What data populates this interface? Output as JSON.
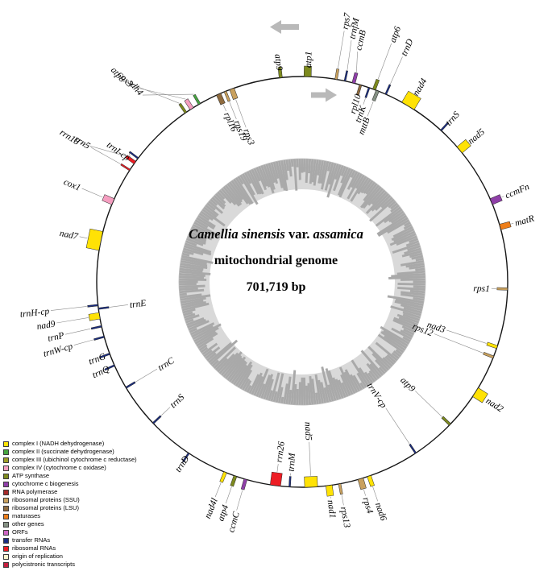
{
  "figure": {
    "title": {
      "species": "Camellia sinensis",
      "var_label": " var. ",
      "variety": "assamica",
      "line2": "mitochondrial genome",
      "line3": "701,719 bp"
    },
    "direction_arrows": {
      "outer_strand": "counterclockwise",
      "inner_strand": "clockwise"
    },
    "colors": {
      "nad": "#ffe205",
      "sdh": "#46a540",
      "cob": "#9d9d26",
      "cox": "#f59ec0",
      "atp": "#7d8a1e",
      "ccm": "#8f3fa8",
      "rpo": "#a52a2a",
      "ssu": "#c9a15e",
      "lsu": "#8f6b3e",
      "mat": "#ee7e19",
      "other": "#859183",
      "orf": "#cd66c4",
      "trna": "#1a2d83",
      "rrna": "#ed1c24",
      "ori": "#fcf6cf",
      "poly": "#c41f3e",
      "circle": "#151515",
      "gc_ring_light": "#d9d9d9",
      "gc_ring_dark": "#a9a9a9",
      "arrow": "#b9b9b9",
      "leader": "#8a8a8a"
    },
    "genes": [
      {
        "n": "atp1",
        "a": 1.5,
        "s": "out",
        "c": "atp",
        "w": 9,
        "lr": 266
      },
      {
        "n": "rps7",
        "a": 9.5,
        "s": "out",
        "c": "ssu",
        "w": 3,
        "lr": 318
      },
      {
        "n": "trnfM",
        "a": 12,
        "s": "out",
        "c": "trna",
        "w": 2,
        "lr": 308,
        "la": 11.5
      },
      {
        "n": "ccmB",
        "a": 14.5,
        "s": "out",
        "c": "ccm",
        "w": 4,
        "lr": 296,
        "la": 13.5
      },
      {
        "n": "atp6",
        "a": 20.5,
        "s": "out",
        "c": "atp",
        "w": 4,
        "lr": 318
      },
      {
        "n": "trnD",
        "a": 24,
        "s": "out",
        "c": "trna",
        "w": 2,
        "lr": 308
      },
      {
        "n": "rpl10",
        "a": 16.5,
        "s": "in",
        "c": "lsu",
        "w": 3,
        "lr": 243
      },
      {
        "n": "trnK",
        "a": 19,
        "s": "in",
        "c": "trna",
        "w": 2,
        "lr": 231
      },
      {
        "n": "mttB",
        "a": 21.5,
        "s": "in",
        "c": "other",
        "w": 4,
        "lr": 219
      },
      {
        "n": "nad4",
        "a": 31,
        "s": "out",
        "c": "nad",
        "w": 18,
        "h": 16,
        "lr": 271
      },
      {
        "n": "trnS",
        "a": 42.5,
        "s": "out",
        "c": "trna",
        "w": 2,
        "lr": 266
      },
      {
        "n": "nad5",
        "a": 50,
        "s": "out",
        "c": "nad",
        "w": 10,
        "h": 14,
        "lr": 270
      },
      {
        "n": "ccmFn",
        "a": 67,
        "s": "out",
        "c": "ccm",
        "w": 8,
        "lr": 274
      },
      {
        "n": "matR",
        "a": 74.5,
        "s": "out",
        "c": "mat",
        "w": 7,
        "lr": 274
      },
      {
        "n": "rps1",
        "a": 92,
        "s": "in",
        "c": "ssu",
        "w": 3,
        "lr": 233
      },
      {
        "n": "nad3",
        "a": 108.5,
        "s": "in",
        "c": "nad",
        "w": 4,
        "lr": 187
      },
      {
        "n": "rps12",
        "a": 111.5,
        "s": "in",
        "c": "ssu",
        "w": 3,
        "lr": 174
      },
      {
        "n": "nad2",
        "a": 122.5,
        "s": "out",
        "c": "nad",
        "w": 13,
        "h": 14,
        "lr": 272
      },
      {
        "n": "atp9",
        "a": 134,
        "s": "in",
        "c": "atp",
        "w": 3,
        "lr": 193
      },
      {
        "n": "trnV-cp",
        "a": 146.5,
        "s": "in",
        "c": "trna",
        "w": 2,
        "lr": 186
      },
      {
        "n": "nad5",
        "a": 177.5,
        "s": "in",
        "c": "nad",
        "w": 16,
        "h": 13,
        "lr": 197
      },
      {
        "n": "nad6",
        "a": 161,
        "s": "out",
        "c": "nad",
        "w": 5,
        "lr": 290
      },
      {
        "n": "rps4",
        "a": 163.5,
        "s": "out",
        "c": "ssu",
        "w": 7,
        "lr": 279
      },
      {
        "n": "rps13",
        "a": 169.5,
        "s": "out",
        "c": "ssu",
        "w": 3,
        "lr": 284
      },
      {
        "n": "nad1",
        "a": 172.5,
        "s": "out",
        "c": "nad",
        "w": 8,
        "lr": 273
      },
      {
        "n": "trnM",
        "a": 183.5,
        "s": "in",
        "c": "trna",
        "w": 2,
        "lr": 236
      },
      {
        "n": "rrn26",
        "a": 187.5,
        "s": "in",
        "c": "rrna",
        "w": 13,
        "h": 16,
        "lr": 226
      },
      {
        "n": "ccmC",
        "a": 196,
        "s": "out",
        "c": "ccm",
        "w": 4,
        "lr": 297
      },
      {
        "n": "atp4",
        "a": 199,
        "s": "out",
        "c": "atp",
        "w": 4,
        "lr": 293
      },
      {
        "n": "nad4l",
        "a": 202,
        "s": "out",
        "c": "nad",
        "w": 4,
        "lr": 290
      },
      {
        "n": "trnD",
        "a": 213.5,
        "s": "out",
        "c": "trna",
        "w": 2,
        "lr": 260
      },
      {
        "n": "trnS",
        "a": 226.5,
        "s": "in",
        "c": "trna",
        "w": 2,
        "lr": 224
      },
      {
        "n": "trnC",
        "a": 239,
        "s": "in",
        "c": "trna",
        "w": 2,
        "lr": 208
      },
      {
        "n": "trnQ",
        "a": 246,
        "s": "out",
        "c": "trna",
        "w": 2,
        "lr": 263
      },
      {
        "n": "trnG",
        "a": 249.5,
        "s": "out",
        "c": "trna",
        "w": 2,
        "lr": 261
      },
      {
        "n": "trnW-cp",
        "a": 254.5,
        "s": "out",
        "c": "trna",
        "w": 2,
        "lr": 296
      },
      {
        "n": "trnP",
        "a": 257.5,
        "s": "out",
        "c": "trna",
        "w": 2,
        "lr": 303
      },
      {
        "n": "nad9",
        "a": 260.5,
        "s": "out",
        "c": "nad",
        "w": 8,
        "lr": 311
      },
      {
        "n": "trnH-cp",
        "a": 263.5,
        "s": "out",
        "c": "trna",
        "w": 2,
        "lr": 316
      },
      {
        "n": "trnE",
        "a": 262.5,
        "s": "in",
        "c": "trna",
        "w": 2,
        "lr": 216
      },
      {
        "n": "nad7",
        "a": 281.5,
        "s": "out",
        "c": "nad",
        "w": 24,
        "h": 16,
        "lr": 284
      },
      {
        "n": "cox1",
        "a": 293,
        "s": "out",
        "c": "cox",
        "w": 8,
        "lr": 299
      },
      {
        "n": "rrn5",
        "a": 303,
        "s": "out",
        "c": "rrna",
        "w": 2,
        "lr": 313,
        "la": 302.5
      },
      {
        "n": "rrn18",
        "a": 305.5,
        "s": "out",
        "c": "rrna",
        "w": 4,
        "lr": 327,
        "la": 302
      },
      {
        "n": "trnI-cp",
        "a": 307,
        "s": "out",
        "c": "trna",
        "w": 2,
        "lr": 264,
        "la": 305.5
      },
      {
        "n": "atp8",
        "a": 325.5,
        "s": "out",
        "c": "atp",
        "w": 3,
        "lr": 334,
        "la": 318.5
      },
      {
        "n": "cox3",
        "a": 327.5,
        "s": "out",
        "c": "cox",
        "w": 5,
        "lr": 323,
        "la": 319
      },
      {
        "n": "sdh4",
        "a": 330,
        "s": "out",
        "c": "sdh",
        "w": 3,
        "lr": 307,
        "la": 319.5
      },
      {
        "n": "rpl16",
        "a": 336,
        "s": "in",
        "c": "lsu",
        "w": 6,
        "lr": 230
      },
      {
        "n": "rps19",
        "a": 338,
        "s": "in",
        "c": "ssu",
        "w": 3,
        "lr": 216
      },
      {
        "n": "rps3",
        "a": 340,
        "s": "in",
        "c": "ssu",
        "w": 6,
        "lr": 202
      },
      {
        "n": "atp9",
        "a": 354,
        "s": "out",
        "c": "atp",
        "w": 4,
        "lr": 264
      }
    ],
    "legend": [
      {
        "label": "complex I (NADH dehydrogenase)",
        "cat": "nad"
      },
      {
        "label": "complex II (succinate dehydrogenase)",
        "cat": "sdh"
      },
      {
        "label": "complex III (ubichinol cytochrome c reductase)",
        "cat": "cob"
      },
      {
        "label": "complex IV (cytochrome c oxidase)",
        "cat": "cox"
      },
      {
        "label": "ATP synthase",
        "cat": "atp"
      },
      {
        "label": "cytochrome c biogenesis",
        "cat": "ccm"
      },
      {
        "label": "RNA polymerase",
        "cat": "rpo"
      },
      {
        "label": "ribosomal proteins (SSU)",
        "cat": "ssu"
      },
      {
        "label": "ribosomal proteins (LSU)",
        "cat": "lsu"
      },
      {
        "label": "maturases",
        "cat": "mat"
      },
      {
        "label": "other genes",
        "cat": "other"
      },
      {
        "label": "ORFs",
        "cat": "orf"
      },
      {
        "label": "transfer RNAs",
        "cat": "trna"
      },
      {
        "label": "ribosomal RNAs",
        "cat": "rrna"
      },
      {
        "label": "origin of replication",
        "cat": "ori"
      },
      {
        "label": "polycistronic transcripts",
        "cat": "poly"
      }
    ]
  }
}
